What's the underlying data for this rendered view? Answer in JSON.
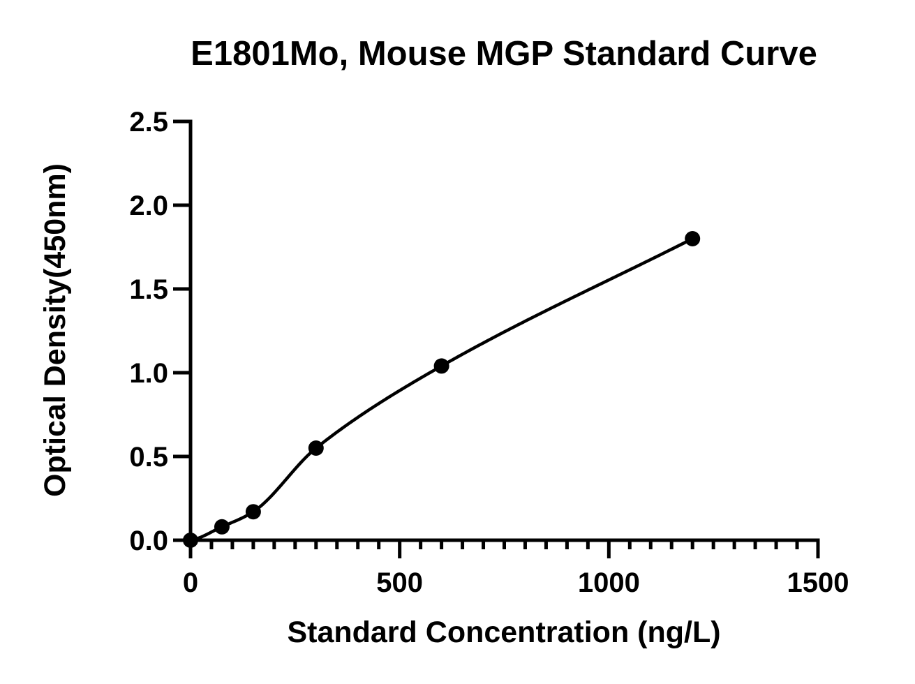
{
  "chart_data": {
    "type": "scatter",
    "title": "E1801Mo, Mouse MGP Standard Curve",
    "xlabel": "Standard Concentration (ng/L)",
    "ylabel": "Optical Density(450nm)",
    "xlim": [
      0,
      1500
    ],
    "ylim": [
      0,
      2.5
    ],
    "x_ticks": [
      0,
      500,
      1000,
      1500
    ],
    "x_tick_labels": [
      "0",
      "500",
      "1000",
      "1500"
    ],
    "x_minor_step": 50,
    "y_ticks": [
      0,
      0.5,
      1.0,
      1.5,
      2.0,
      2.5
    ],
    "y_tick_labels": [
      "0.0",
      "0.5",
      "1.0",
      "1.5",
      "2.0",
      "2.5"
    ],
    "grid": false,
    "series": [
      {
        "points": [
          {
            "x": 0,
            "y": 0.0
          },
          {
            "x": 75,
            "y": 0.08
          },
          {
            "x": 150,
            "y": 0.17
          },
          {
            "x": 300,
            "y": 0.55
          },
          {
            "x": 600,
            "y": 1.04
          },
          {
            "x": 1200,
            "y": 1.8
          }
        ],
        "fit_curve": true,
        "color": "#000000"
      }
    ]
  }
}
